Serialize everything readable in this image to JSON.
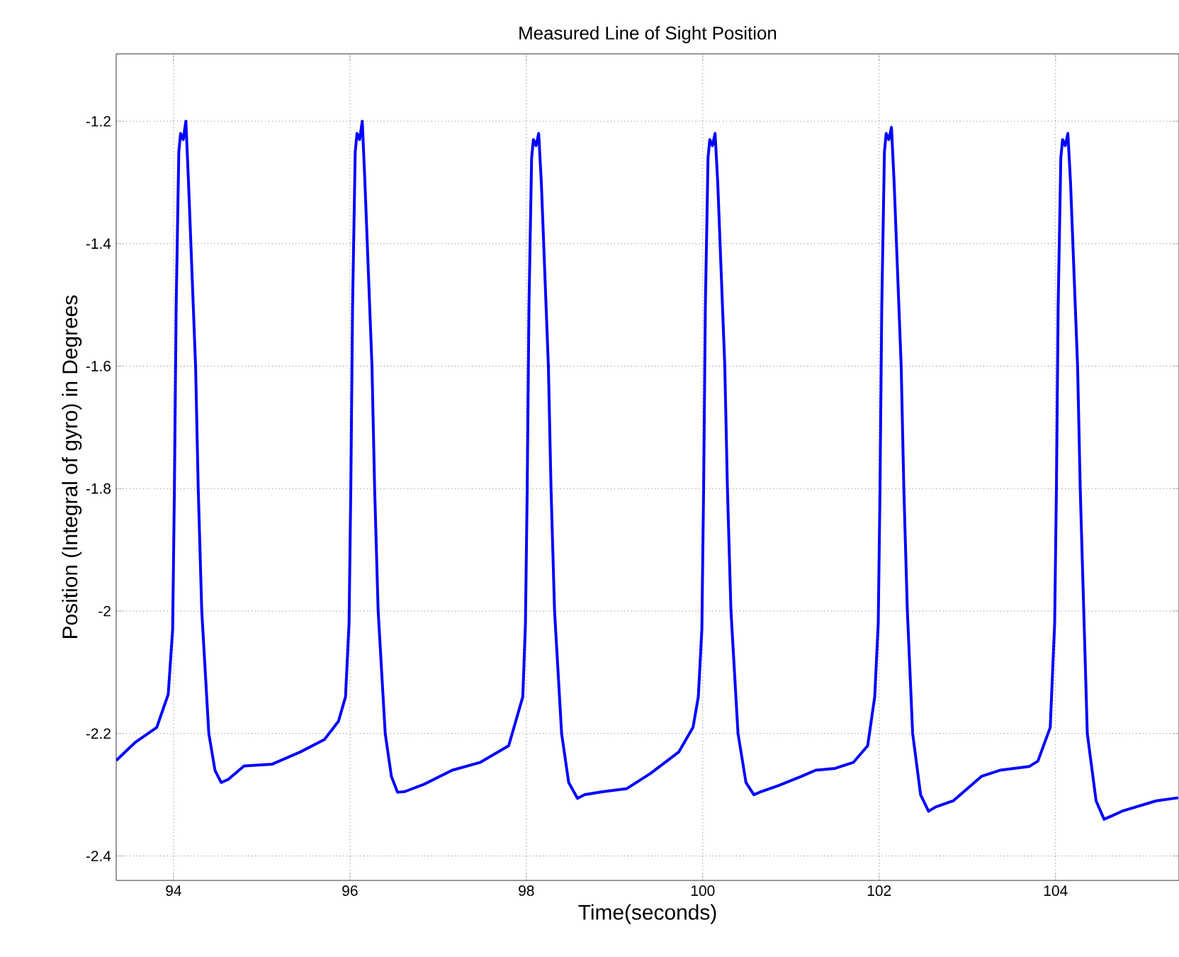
{
  "chart_data": {
    "type": "line",
    "title": "Measured Line of Sight Position",
    "xlabel": "Time(seconds)",
    "ylabel": "Position  (Integral of gyro) in Degrees",
    "xlim": [
      93.35,
      105.4
    ],
    "ylim": [
      -2.44,
      -1.09
    ],
    "xticks": [
      94,
      96,
      98,
      100,
      102,
      104
    ],
    "yticks": [
      -2.4,
      -2.2,
      -2,
      -1.8,
      -1.6,
      -1.4,
      -1.2
    ],
    "grid": true,
    "marker": "none",
    "line_style": "solid",
    "series": [
      {
        "color": "#0000ff",
        "x": [
          93.35,
          93.57,
          93.81,
          93.94,
          93.99,
          94.01,
          94.03,
          94.06,
          94.08,
          94.11,
          94.14,
          94.17,
          94.21,
          94.25,
          94.28,
          94.32,
          94.4,
          94.47,
          94.54,
          94.62,
          94.8,
          95.12,
          95.44,
          95.71,
          95.87,
          95.95,
          95.99,
          96.01,
          96.03,
          96.06,
          96.08,
          96.11,
          96.14,
          96.17,
          96.21,
          96.25,
          96.28,
          96.32,
          96.4,
          96.47,
          96.54,
          96.62,
          96.84,
          97.16,
          97.48,
          97.8,
          97.96,
          97.99,
          98.01,
          98.03,
          98.06,
          98.08,
          98.11,
          98.14,
          98.17,
          98.21,
          98.25,
          98.28,
          98.32,
          98.4,
          98.48,
          98.58,
          98.66,
          98.87,
          99.14,
          99.41,
          99.73,
          99.89,
          99.95,
          99.99,
          100.01,
          100.03,
          100.06,
          100.08,
          100.11,
          100.14,
          100.17,
          100.21,
          100.25,
          100.28,
          100.32,
          100.4,
          100.49,
          100.58,
          100.66,
          100.86,
          101.12,
          101.28,
          101.5,
          101.71,
          101.87,
          101.95,
          101.99,
          102.01,
          102.03,
          102.06,
          102.08,
          102.11,
          102.14,
          102.17,
          102.21,
          102.25,
          102.28,
          102.32,
          102.38,
          102.47,
          102.56,
          102.64,
          102.84,
          103.16,
          103.37,
          103.7,
          103.8,
          103.94,
          103.99,
          104.01,
          104.03,
          104.06,
          104.08,
          104.11,
          104.14,
          104.17,
          104.21,
          104.25,
          104.28,
          104.32,
          104.36,
          104.46,
          104.55,
          104.63,
          104.77,
          105.14,
          105.39
        ],
        "values": [
          -2.244,
          -2.214,
          -2.19,
          -2.136,
          -2.03,
          -1.8,
          -1.5,
          -1.25,
          -1.22,
          -1.23,
          -1.2,
          -1.3,
          -1.45,
          -1.6,
          -1.8,
          -2.0,
          -2.2,
          -2.26,
          -2.28,
          -2.275,
          -2.253,
          -2.25,
          -2.23,
          -2.21,
          -2.18,
          -2.14,
          -2.02,
          -1.8,
          -1.5,
          -1.25,
          -1.22,
          -1.23,
          -1.2,
          -1.3,
          -1.45,
          -1.6,
          -1.8,
          -2.0,
          -2.2,
          -2.27,
          -2.296,
          -2.295,
          -2.283,
          -2.26,
          -2.247,
          -2.22,
          -2.14,
          -2.02,
          -1.8,
          -1.5,
          -1.26,
          -1.23,
          -1.24,
          -1.22,
          -1.3,
          -1.45,
          -1.6,
          -1.8,
          -2.0,
          -2.2,
          -2.28,
          -2.306,
          -2.3,
          -2.295,
          -2.29,
          -2.265,
          -2.23,
          -2.19,
          -2.14,
          -2.03,
          -1.8,
          -1.5,
          -1.26,
          -1.23,
          -1.24,
          -1.22,
          -1.3,
          -1.45,
          -1.6,
          -1.8,
          -2.0,
          -2.2,
          -2.28,
          -2.3,
          -2.295,
          -2.285,
          -2.27,
          -2.26,
          -2.257,
          -2.247,
          -2.22,
          -2.14,
          -2.02,
          -1.8,
          -1.5,
          -1.25,
          -1.22,
          -1.23,
          -1.21,
          -1.3,
          -1.45,
          -1.6,
          -1.8,
          -2.0,
          -2.2,
          -2.3,
          -2.327,
          -2.32,
          -2.31,
          -2.27,
          -2.26,
          -2.254,
          -2.245,
          -2.19,
          -2.02,
          -1.8,
          -1.5,
          -1.26,
          -1.23,
          -1.24,
          -1.22,
          -1.3,
          -1.45,
          -1.6,
          -1.8,
          -2.0,
          -2.2,
          -2.31,
          -2.34,
          -2.335,
          -2.326,
          -2.31,
          -2.305
        ]
      }
    ]
  }
}
